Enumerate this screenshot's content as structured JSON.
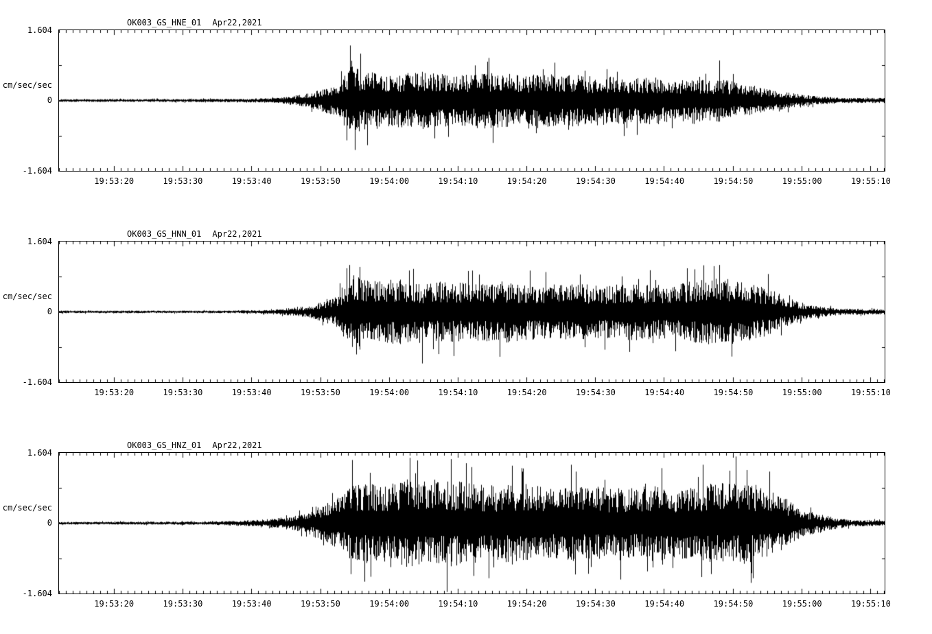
{
  "chart_data": [
    {
      "type": "line",
      "subtype": "seismogram",
      "title": "OK003_GS_HNE_01",
      "date": "Apr22,2021",
      "ylabel": "cm/sec/sec",
      "ylim": [
        -1.604,
        1.604
      ],
      "ytick_labels": [
        "1.604",
        "0",
        "-1.604"
      ],
      "xtick_labels": [
        "19:53:20",
        "19:53:30",
        "19:53:40",
        "19:53:50",
        "19:54:00",
        "19:54:10",
        "19:54:20",
        "19:54:30",
        "19:54:40",
        "19:54:50",
        "19:55:00",
        "19:55:10"
      ],
      "x_span_s": 120,
      "xtick_first_offset_s": 8,
      "xtick_step_s": 10,
      "grid": false,
      "line_color": "#000000",
      "envelope": [
        [
          0,
          0.03
        ],
        [
          26,
          0.04
        ],
        [
          32,
          0.06
        ],
        [
          36,
          0.16
        ],
        [
          40,
          0.35
        ],
        [
          42.5,
          0.8
        ],
        [
          44,
          0.72
        ],
        [
          48,
          0.61
        ],
        [
          53,
          0.67
        ],
        [
          58,
          0.58
        ],
        [
          62,
          0.67
        ],
        [
          67,
          0.61
        ],
        [
          72,
          0.64
        ],
        [
          77,
          0.58
        ],
        [
          82,
          0.55
        ],
        [
          86,
          0.55
        ],
        [
          91,
          0.48
        ],
        [
          96,
          0.51
        ],
        [
          100,
          0.35
        ],
        [
          103,
          0.26
        ],
        [
          107,
          0.16
        ],
        [
          110,
          0.1
        ],
        [
          114,
          0.06
        ],
        [
          120,
          0.06
        ]
      ],
      "spikes": [
        [
          42.3,
          1.28
        ],
        [
          43,
          -1.15
        ],
        [
          43.8,
          1.09
        ],
        [
          54.6,
          -0.88
        ],
        [
          62.4,
          0.99
        ],
        [
          72,
          0.88
        ],
        [
          84,
          -0.8
        ],
        [
          96,
          0.93
        ]
      ]
    },
    {
      "type": "line",
      "subtype": "seismogram",
      "title": "OK003_GS_HNN_01",
      "date": "Apr22,2021",
      "ylabel": "cm/sec/sec",
      "ylim": [
        -1.604,
        1.604
      ],
      "ytick_labels": [
        "1.604",
        "0",
        "-1.604"
      ],
      "xtick_labels": [
        "19:53:20",
        "19:53:30",
        "19:53:40",
        "19:53:50",
        "19:54:00",
        "19:54:10",
        "19:54:20",
        "19:54:30",
        "19:54:40",
        "19:54:50",
        "19:55:00",
        "19:55:10"
      ],
      "x_span_s": 120,
      "xtick_first_offset_s": 8,
      "xtick_step_s": 10,
      "grid": false,
      "line_color": "#000000",
      "envelope": [
        [
          0,
          0.03
        ],
        [
          24,
          0.03
        ],
        [
          31,
          0.05
        ],
        [
          36,
          0.13
        ],
        [
          40,
          0.32
        ],
        [
          42.5,
          0.88
        ],
        [
          45,
          0.72
        ],
        [
          49,
          0.77
        ],
        [
          53,
          0.64
        ],
        [
          56,
          0.72
        ],
        [
          60,
          0.67
        ],
        [
          65,
          0.72
        ],
        [
          70,
          0.64
        ],
        [
          74,
          0.67
        ],
        [
          79,
          0.61
        ],
        [
          84,
          0.67
        ],
        [
          89,
          0.61
        ],
        [
          92,
          0.72
        ],
        [
          96,
          0.8
        ],
        [
          100,
          0.72
        ],
        [
          103,
          0.56
        ],
        [
          106,
          0.32
        ],
        [
          109,
          0.16
        ],
        [
          113,
          0.08
        ],
        [
          120,
          0.06
        ]
      ],
      "spikes": [
        [
          42.2,
          1.09
        ],
        [
          43.2,
          -0.99
        ],
        [
          52.8,
          -1.2
        ],
        [
          60,
          0.96
        ],
        [
          68.4,
          0.96
        ],
        [
          92.4,
          0.99
        ],
        [
          96,
          1.09
        ],
        [
          97.8,
          -1.04
        ],
        [
          103,
          0.88
        ]
      ]
    },
    {
      "type": "line",
      "subtype": "seismogram",
      "title": "OK003_GS_HNZ_01",
      "date": "Apr22,2021",
      "ylabel": "cm/sec/sec",
      "ylim": [
        -1.604,
        1.604
      ],
      "ytick_labels": [
        "1.604",
        "0",
        "-1.604"
      ],
      "xtick_labels": [
        "19:53:20",
        "19:53:30",
        "19:53:40",
        "19:53:50",
        "19:54:00",
        "19:54:10",
        "19:54:20",
        "19:54:30",
        "19:54:40",
        "19:54:50",
        "19:55:00",
        "19:55:10"
      ],
      "x_span_s": 120,
      "xtick_first_offset_s": 8,
      "xtick_step_s": 10,
      "grid": false,
      "line_color": "#000000",
      "envelope": [
        [
          0,
          0.03
        ],
        [
          22,
          0.04
        ],
        [
          29,
          0.08
        ],
        [
          34,
          0.16
        ],
        [
          37,
          0.32
        ],
        [
          41,
          0.64
        ],
        [
          43,
          0.96
        ],
        [
          47,
          0.88
        ],
        [
          50,
          1.04
        ],
        [
          54,
          0.96
        ],
        [
          58,
          0.99
        ],
        [
          62,
          0.88
        ],
        [
          67,
          0.93
        ],
        [
          72,
          0.83
        ],
        [
          77,
          0.88
        ],
        [
          82,
          0.8
        ],
        [
          86,
          0.88
        ],
        [
          91,
          0.83
        ],
        [
          96,
          0.93
        ],
        [
          100,
          0.96
        ],
        [
          103,
          0.8
        ],
        [
          106,
          0.56
        ],
        [
          108,
          0.32
        ],
        [
          112,
          0.16
        ],
        [
          115,
          0.08
        ],
        [
          120,
          0.06
        ]
      ],
      "spikes": [
        [
          42.6,
          1.47
        ],
        [
          44.4,
          -1.36
        ],
        [
          51,
          1.52
        ],
        [
          56.4,
          -1.6
        ],
        [
          57,
          1.49
        ],
        [
          62.4,
          -1.28
        ],
        [
          67.2,
          1.28
        ],
        [
          74.4,
          1.36
        ],
        [
          81.6,
          -1.31
        ],
        [
          87.6,
          1.28
        ],
        [
          93.6,
          1.36
        ],
        [
          98.4,
          1.55
        ],
        [
          100.8,
          -1.28
        ],
        [
          103.2,
          1.2
        ]
      ]
    }
  ]
}
